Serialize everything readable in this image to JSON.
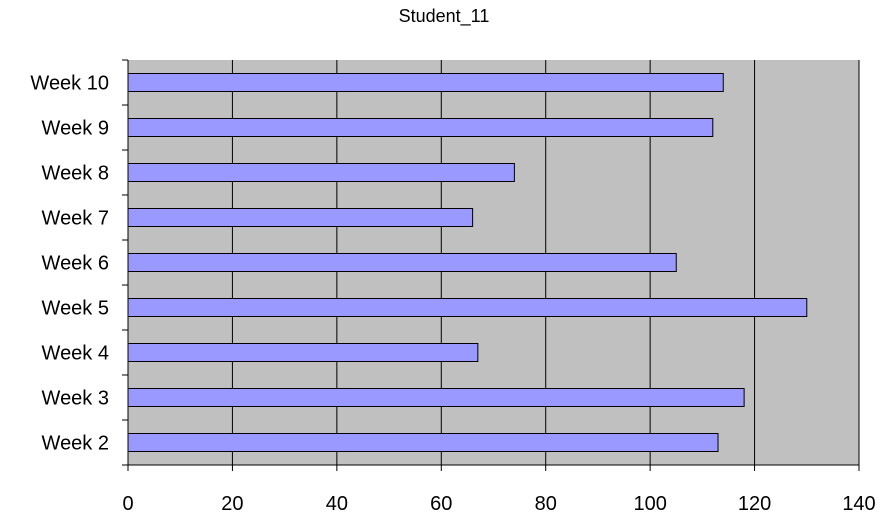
{
  "chart_data": {
    "type": "bar",
    "orientation": "horizontal",
    "title": "Student_11",
    "xlabel": "",
    "ylabel": "",
    "categories": [
      "Week 2",
      "Week 3",
      "Week 4",
      "Week 5",
      "Week 6",
      "Week 7",
      "Week 8",
      "Week 9",
      "Week 10"
    ],
    "values": [
      113,
      118,
      67,
      130,
      105,
      66,
      74,
      112,
      114
    ],
    "xlim": [
      0,
      140
    ],
    "xticks": [
      0,
      20,
      40,
      60,
      80,
      100,
      120,
      140
    ],
    "grid": true,
    "legend": "none",
    "colors": {
      "bar_fill": "#9999ff",
      "bar_stroke": "#000000",
      "plot_background": "#c0c0c0",
      "gridline": "#000000"
    }
  }
}
